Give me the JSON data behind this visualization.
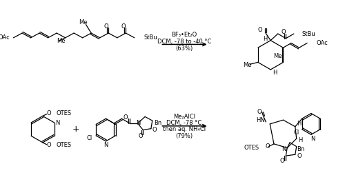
{
  "background_color": "#ffffff",
  "reaction1_reagents": "BF₃•Et₂O",
  "reaction1_conditions": "DCM, -78 to -40 °C",
  "reaction1_yield": "(63%)",
  "reaction2_reagents": "Me₂AlCl",
  "reaction2_conditions": "DCM, -78 °C",
  "reaction2_conditions2": "then aq. NH₄Cl",
  "reaction2_yield": "(79%)",
  "lw": 0.9,
  "fs": 6.0
}
